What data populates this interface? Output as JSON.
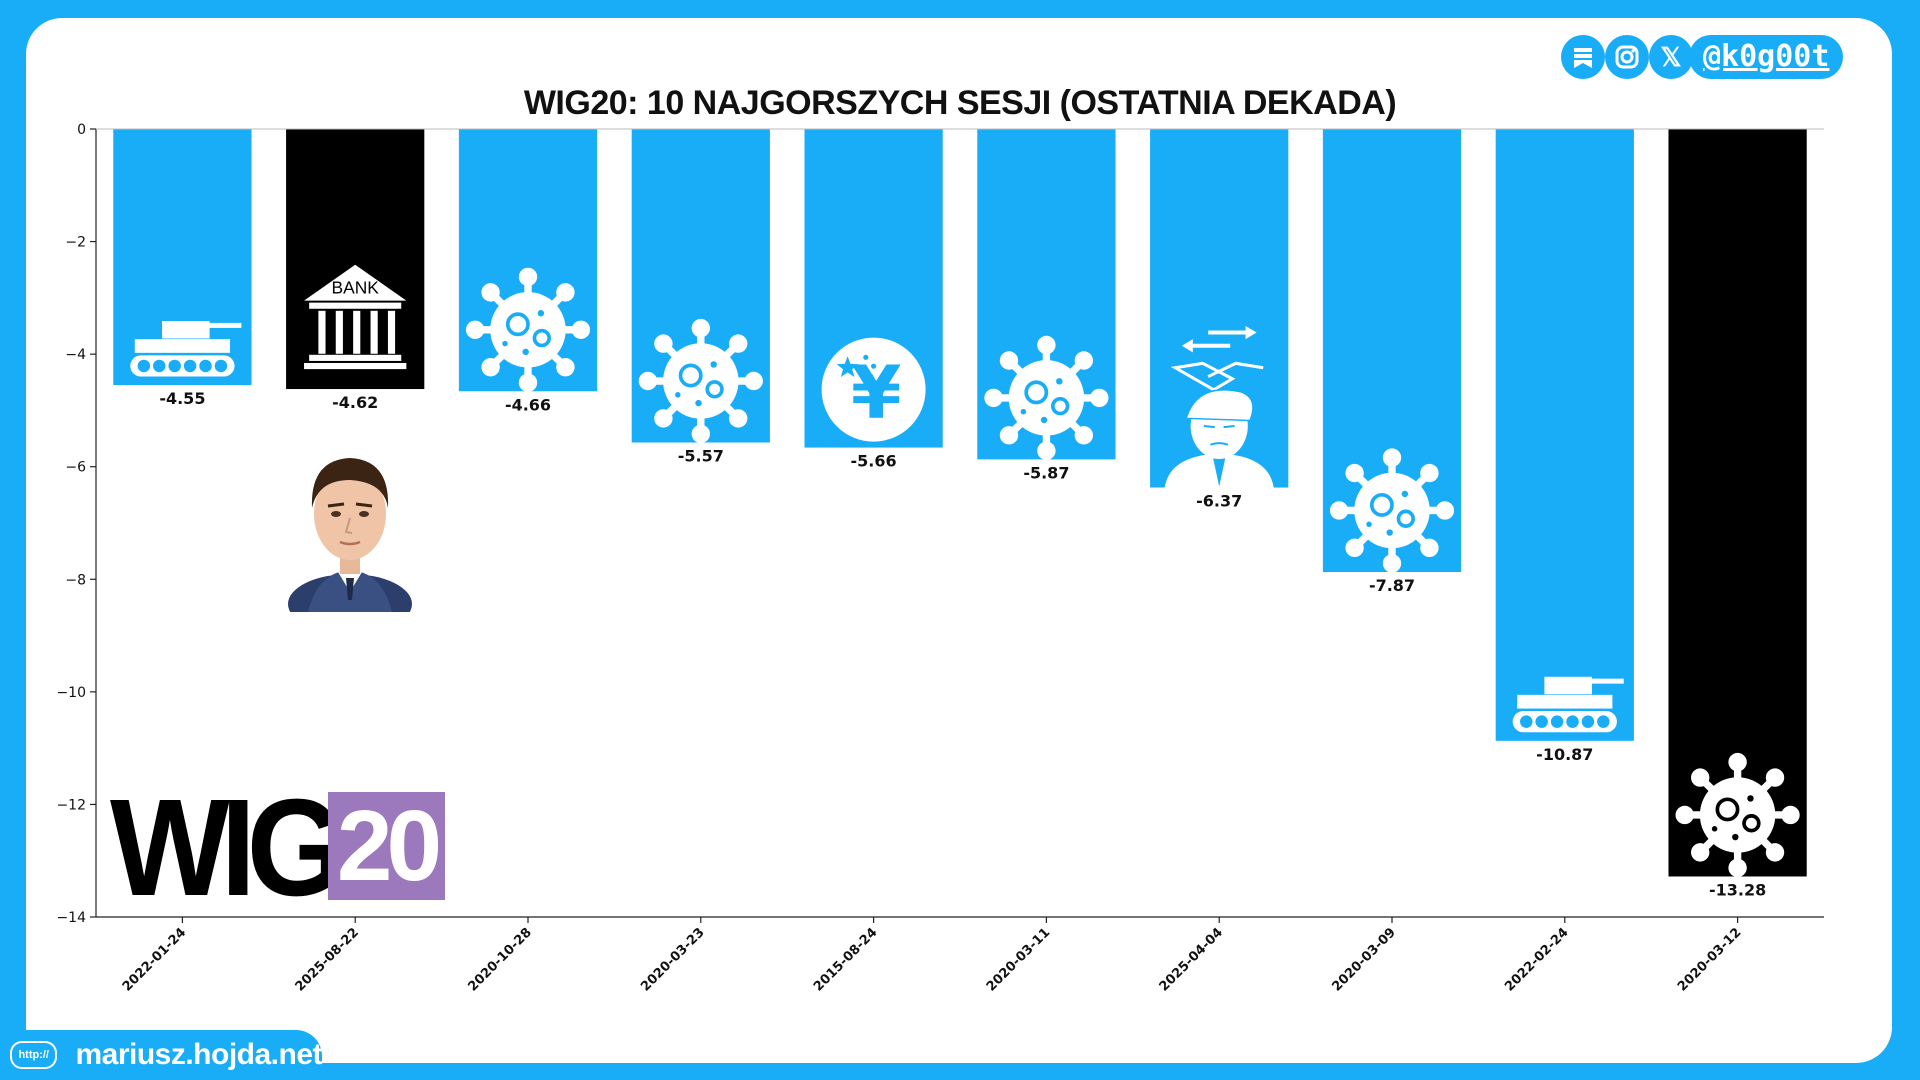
{
  "social": {
    "handle": "@k0g00t",
    "icons": [
      "bookmark-icon",
      "instagram-icon",
      "x-icon"
    ],
    "x_glyph": "𝕏"
  },
  "footer": {
    "http_label": "http://",
    "url": "mariusz.hojda.net"
  },
  "logo": {
    "wig_text": "WIG",
    "num_text": "20"
  },
  "colors": {
    "background": "#1AADF7",
    "bar_default": "#1AADF7",
    "bar_highlight": "#000000",
    "logo_purple": "#9C79BD"
  },
  "chart_data": {
    "type": "bar",
    "title": "WIG20: 10 NAJGORSZYCH SESJI (OSTATNIA DEKADA)",
    "xlabel": "",
    "ylabel": "",
    "ylim": [
      -14,
      0
    ],
    "yticks": [
      0,
      -2,
      -4,
      -6,
      -8,
      -10,
      -12,
      -14
    ],
    "ytick_labels": [
      "0",
      "−2",
      "−4",
      "−6",
      "−8",
      "−10",
      "−12",
      "−14"
    ],
    "categories": [
      "2022-01-24",
      "2025-08-22",
      "2020-10-28",
      "2020-03-23",
      "2015-08-24",
      "2020-03-11",
      "2025-04-04",
      "2020-03-09",
      "2022-02-24",
      "2020-03-12"
    ],
    "values": [
      -4.55,
      -4.62,
      -4.66,
      -5.57,
      -5.66,
      -5.87,
      -6.37,
      -7.87,
      -10.87,
      -13.28
    ],
    "value_labels": [
      "-4.55",
      "-4.62",
      "-4.66",
      "-5.57",
      "-5.66",
      "-5.87",
      "-6.37",
      "-7.87",
      "-10.87",
      "-13.28"
    ],
    "highlighted": [
      false,
      true,
      false,
      false,
      false,
      false,
      false,
      false,
      false,
      true
    ],
    "bar_icons": [
      "tank-icon",
      "bank-icon",
      "virus-icon",
      "virus-icon",
      "yuan-icon",
      "virus-icon",
      "trade-deal-icon",
      "virus-icon",
      "tank-icon",
      "virus-icon"
    ],
    "bank_icon_text": "BANK",
    "yuan_glyph": "¥"
  }
}
